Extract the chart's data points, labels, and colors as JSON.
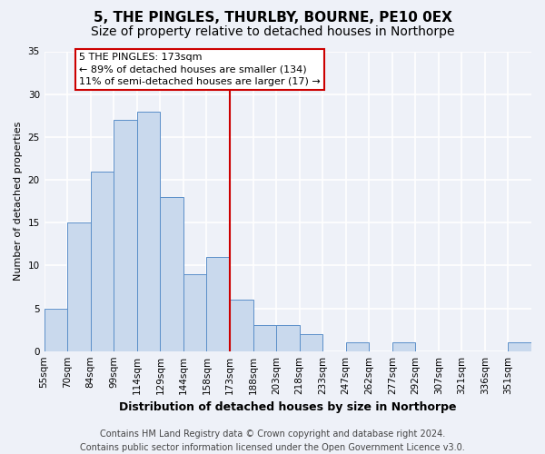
{
  "title": "5, THE PINGLES, THURLBY, BOURNE, PE10 0EX",
  "subtitle": "Size of property relative to detached houses in Northorpe",
  "xlabel": "Distribution of detached houses by size in Northorpe",
  "ylabel": "Number of detached properties",
  "bar_labels": [
    "55sqm",
    "70sqm",
    "84sqm",
    "99sqm",
    "114sqm",
    "129sqm",
    "144sqm",
    "158sqm",
    "173sqm",
    "188sqm",
    "203sqm",
    "218sqm",
    "233sqm",
    "247sqm",
    "262sqm",
    "277sqm",
    "292sqm",
    "307sqm",
    "321sqm",
    "336sqm",
    "351sqm"
  ],
  "bar_values": [
    5,
    15,
    21,
    27,
    28,
    18,
    9,
    11,
    6,
    3,
    3,
    2,
    0,
    1,
    0,
    1,
    0,
    0,
    0,
    0,
    1
  ],
  "bar_color": "#c9d9ed",
  "bar_edge_color": "#5b8fc9",
  "vline_x_index": 8,
  "vline_color": "#cc0000",
  "annotation_title": "5 THE PINGLES: 173sqm",
  "annotation_line1": "← 89% of detached houses are smaller (134)",
  "annotation_line2": "11% of semi-detached houses are larger (17) →",
  "annotation_box_color": "#ffffff",
  "annotation_box_edge_color": "#cc0000",
  "ylim": [
    0,
    35
  ],
  "yticks": [
    0,
    5,
    10,
    15,
    20,
    25,
    30,
    35
  ],
  "background_color": "#eef1f8",
  "grid_color": "#ffffff",
  "footer_line1": "Contains HM Land Registry data © Crown copyright and database right 2024.",
  "footer_line2": "Contains public sector information licensed under the Open Government Licence v3.0.",
  "title_fontsize": 11,
  "subtitle_fontsize": 10,
  "xlabel_fontsize": 9,
  "ylabel_fontsize": 8,
  "tick_fontsize": 7.5,
  "footer_fontsize": 7,
  "ann_fontsize": 8
}
